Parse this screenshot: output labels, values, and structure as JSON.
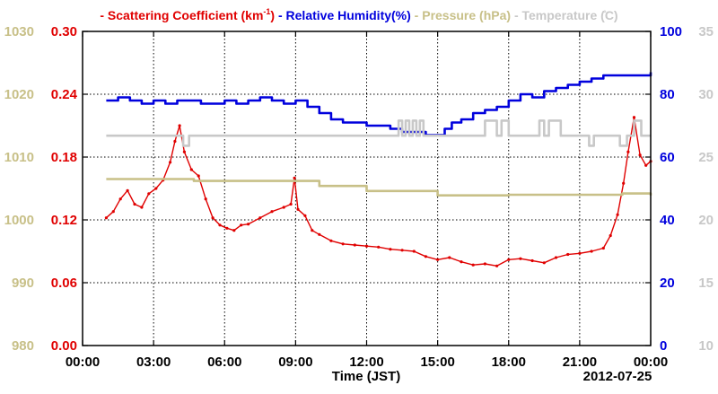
{
  "chart_data": {
    "type": "line",
    "legend": {
      "placement": "top",
      "entries": [
        {
          "dash": "-",
          "text": "Scattering Coefficient (km",
          "sup": "-1",
          "tail": ")",
          "color": "#e00000"
        },
        {
          "dash": "-",
          "text": "Relative Humidity(%)",
          "color": "#0000dd"
        },
        {
          "dash": "-",
          "text": "Pressure (hPa)",
          "color": "#c8c088"
        },
        {
          "dash": "-",
          "text": "Temperature (̊C)",
          "color": "#c8c8c8"
        }
      ]
    },
    "xlabel": "Time (JST)",
    "date_label": "2012-07-25",
    "x_ticks": [
      "00:00",
      "03:00",
      "06:00",
      "09:00",
      "12:00",
      "15:00",
      "18:00",
      "21:00",
      "00:00"
    ],
    "xlim_hours": [
      0,
      24
    ],
    "grid": true,
    "axes": {
      "pressure": {
        "side": "left-outer",
        "color": "#c8c088",
        "ylim": [
          980,
          1030
        ],
        "ticks": [
          "980",
          "990",
          "1000",
          "1010",
          "1020",
          "1030"
        ]
      },
      "scattering": {
        "side": "left-inner",
        "color": "#e00000",
        "ylim": [
          0.0,
          0.3
        ],
        "ticks": [
          "0.00",
          "0.06",
          "0.12",
          "0.18",
          "0.24",
          "0.30"
        ]
      },
      "humidity": {
        "side": "right-inner",
        "color": "#0000dd",
        "ylim": [
          0,
          100
        ],
        "ticks": [
          "0",
          "20",
          "40",
          "60",
          "80",
          "100"
        ]
      },
      "temperature": {
        "side": "right-outer",
        "color": "#c8c8c8",
        "ylim": [
          10,
          35
        ],
        "ticks": [
          "10",
          "15",
          "20",
          "25",
          "30",
          "35"
        ]
      }
    },
    "series": [
      {
        "key": "scattering",
        "axis": "scattering",
        "color": "#e00000",
        "markers": true,
        "x": [
          1.0,
          1.3,
          1.6,
          1.9,
          2.2,
          2.5,
          2.8,
          3.1,
          3.4,
          3.7,
          3.9,
          4.1,
          4.3,
          4.6,
          4.9,
          5.2,
          5.5,
          5.8,
          6.1,
          6.4,
          6.7,
          7.0,
          7.5,
          8.0,
          8.5,
          8.8,
          8.95,
          9.1,
          9.4,
          9.7,
          10.0,
          10.5,
          11.0,
          11.5,
          12.0,
          12.5,
          13.0,
          13.5,
          14.0,
          14.5,
          15.0,
          15.5,
          16.0,
          16.5,
          17.0,
          17.5,
          18.0,
          18.5,
          19.0,
          19.5,
          20.0,
          20.5,
          21.0,
          21.5,
          22.0,
          22.3,
          22.6,
          22.85,
          23.05,
          23.3,
          23.55,
          23.8,
          24.0
        ],
        "y": [
          0.122,
          0.128,
          0.14,
          0.148,
          0.135,
          0.132,
          0.145,
          0.15,
          0.158,
          0.175,
          0.195,
          0.21,
          0.185,
          0.168,
          0.162,
          0.14,
          0.122,
          0.115,
          0.112,
          0.11,
          0.115,
          0.116,
          0.122,
          0.128,
          0.132,
          0.135,
          0.16,
          0.13,
          0.124,
          0.11,
          0.106,
          0.1,
          0.097,
          0.096,
          0.095,
          0.094,
          0.092,
          0.091,
          0.09,
          0.085,
          0.082,
          0.084,
          0.08,
          0.077,
          0.078,
          0.076,
          0.082,
          0.083,
          0.081,
          0.079,
          0.084,
          0.087,
          0.088,
          0.09,
          0.093,
          0.105,
          0.125,
          0.155,
          0.185,
          0.218,
          0.182,
          0.172,
          0.176
        ]
      },
      {
        "key": "humidity",
        "axis": "humidity",
        "color": "#0000dd",
        "step": true,
        "x": [
          1.0,
          1.5,
          2.0,
          2.5,
          3.0,
          3.5,
          4.0,
          4.5,
          5.0,
          5.5,
          6.0,
          6.5,
          7.0,
          7.5,
          8.0,
          8.5,
          9.0,
          9.5,
          10.0,
          10.5,
          11.0,
          11.5,
          12.0,
          12.5,
          13.0,
          13.5,
          14.0,
          14.5,
          15.0,
          15.3,
          15.6,
          16.0,
          16.5,
          17.0,
          17.5,
          18.0,
          18.5,
          19.0,
          19.5,
          20.0,
          20.5,
          21.0,
          21.5,
          22.0,
          22.5,
          23.0,
          23.5,
          24.0
        ],
        "y": [
          78,
          79,
          78,
          77,
          78,
          77,
          78,
          78,
          77,
          77,
          78,
          77,
          78,
          79,
          78,
          77,
          78,
          76,
          74,
          72,
          71,
          71,
          70,
          70,
          69,
          68,
          68,
          67,
          67,
          69,
          71,
          72,
          74,
          75,
          76,
          78,
          80,
          79,
          81,
          82,
          83,
          84,
          85,
          86,
          86,
          86,
          86,
          87
        ]
      },
      {
        "key": "pressure",
        "axis": "pressure",
        "color": "#c8c088",
        "step": true,
        "x": [
          1.0,
          4.7,
          10.0,
          12.0,
          15.0,
          18.0,
          22.8,
          24.0
        ],
        "y": [
          1006.5,
          1006.2,
          1005.4,
          1004.6,
          1003.9,
          1004.0,
          1004.2,
          1003.9
        ]
      },
      {
        "key": "temperature",
        "axis": "temperature",
        "color": "#c8c8c8",
        "step": true,
        "x": [
          1.0,
          4.0,
          4.25,
          4.5,
          13.2,
          13.35,
          13.5,
          13.65,
          13.8,
          13.95,
          14.1,
          14.25,
          14.4,
          16.8,
          17.0,
          17.5,
          17.7,
          18.0,
          19.3,
          19.5,
          19.7,
          20.2,
          20.6,
          21.4,
          21.6,
          22.0,
          22.5,
          22.7,
          23.0,
          23.3,
          23.6,
          24.0
        ],
        "y": [
          26.7,
          26.7,
          25.9,
          26.7,
          26.7,
          27.9,
          26.7,
          27.9,
          26.7,
          27.9,
          26.7,
          27.9,
          26.7,
          26.7,
          27.9,
          26.7,
          27.9,
          26.7,
          27.9,
          26.7,
          27.9,
          26.7,
          26.7,
          25.9,
          26.7,
          26.7,
          26.7,
          25.9,
          26.7,
          27.9,
          26.7,
          26.7
        ]
      }
    ]
  }
}
